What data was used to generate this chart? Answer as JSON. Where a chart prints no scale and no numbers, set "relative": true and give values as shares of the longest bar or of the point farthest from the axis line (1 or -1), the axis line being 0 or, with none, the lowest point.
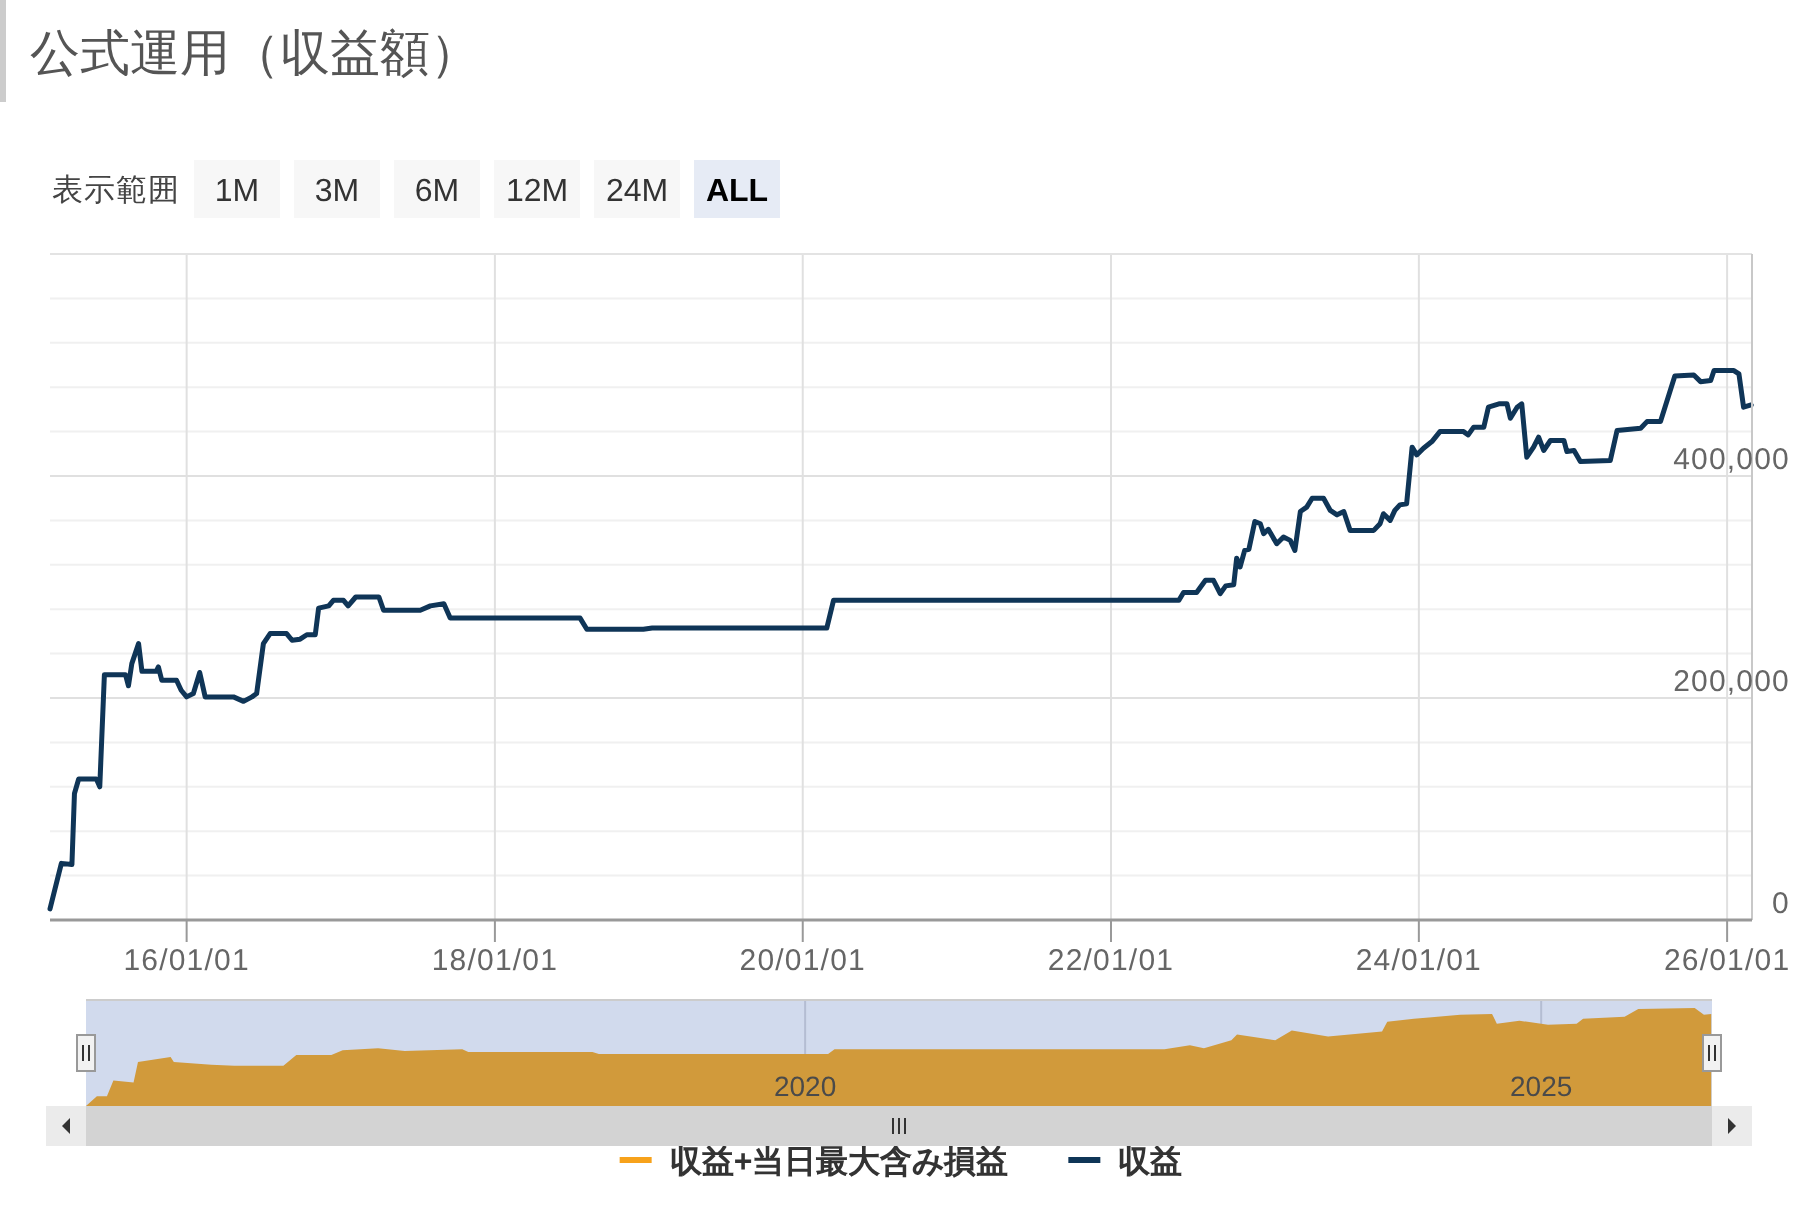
{
  "chart_data": [
    {
      "type": "line",
      "title": "公式運用（収益額）",
      "annotations": [
        "表示範囲",
        "1M",
        "3M",
        "6M",
        "12M",
        "24M",
        "ALL"
      ],
      "x": [
        "2015-02-11",
        "2015-03-10",
        "2015-04-04",
        "2015-04-10",
        "2015-04-20",
        "2015-06-01",
        "2015-06-09",
        "2015-06-20",
        "2015-08-09",
        "2015-08-16",
        "2015-08-24",
        "2015-09-09",
        "2015-09-17",
        "2015-10-21",
        "2015-10-26",
        "2015-11-03",
        "2015-12-08",
        "2015-12-19",
        "2016-01-01",
        "2016-01-17",
        "2016-02-01",
        "2016-02-14",
        "2016-04-21",
        "2016-05-15",
        "2016-06-04",
        "2016-06-15",
        "2016-07-01",
        "2016-07-17",
        "2016-08-25",
        "2016-09-07",
        "2016-09-26",
        "2016-10-12",
        "2016-11-01",
        "2016-11-09",
        "2016-12-03",
        "2016-12-14",
        "2017-01-07",
        "2017-01-18",
        "2017-02-05",
        "2017-04-01",
        "2017-04-12",
        "2017-07-08",
        "2017-08-01",
        "2017-09-02",
        "2017-09-17",
        "2018-07-22",
        "2018-08-07",
        "2018-12-19",
        "2019-01-09",
        "2020-02-27",
        "2020-03-14",
        "2022-06-11",
        "2022-06-22",
        "2022-07-23",
        "2022-08-13",
        "2022-09-01",
        "2022-09-17",
        "2022-09-30",
        "2022-10-19",
        "2022-10-26",
        "2022-11-03",
        "2022-11-14",
        "2022-11-24",
        "2022-12-08",
        "2022-12-21",
        "2022-12-29",
        "2023-01-09",
        "2023-01-29",
        "2023-02-14",
        "2023-03-02",
        "2023-03-13",
        "2023-03-26",
        "2023-04-10",
        "2023-04-23",
        "2023-05-20",
        "2023-06-05",
        "2023-06-21",
        "2023-07-07",
        "2023-07-22",
        "2023-09-16",
        "2023-10-01",
        "2023-10-09",
        "2023-10-25",
        "2023-11-05",
        "2023-11-17",
        "2023-12-03",
        "2023-12-16",
        "2023-12-27",
        "2024-01-12",
        "2024-02-01",
        "2024-02-20",
        "2024-04-16",
        "2024-04-27",
        "2024-05-10",
        "2024-06-03",
        "2024-06-14",
        "2024-07-09",
        "2024-07-28",
        "2024-08-05",
        "2024-08-21",
        "2024-09-01",
        "2024-09-13",
        "2024-09-29",
        "2024-10-11",
        "2024-10-23",
        "2024-11-08",
        "2024-12-10",
        "2024-12-17",
        "2025-01-03",
        "2025-01-18",
        "2025-03-30",
        "2025-04-15",
        "2025-06-10",
        "2025-06-25",
        "2025-07-27",
        "2025-08-30",
        "2025-10-14",
        "2025-10-30",
        "2025-11-23",
        "2025-12-01",
        "2026-01-17",
        "2026-01-29",
        "2026-02-09",
        "2026-02-27"
      ],
      "series": [
        {
          "name": "収益+当日最大含み損益",
          "color": "#f7a21b",
          "values": [
            null,
            null,
            null,
            null,
            null,
            null,
            null,
            null,
            null,
            null,
            null,
            null,
            null,
            null,
            null,
            null,
            null,
            null,
            null,
            null,
            null,
            null,
            null,
            null,
            null,
            null,
            null,
            null,
            null,
            null,
            null,
            null,
            null,
            null,
            null,
            null,
            null,
            null,
            null,
            null,
            null,
            null,
            null,
            null,
            null,
            null,
            null,
            null,
            null,
            null,
            null,
            null,
            null,
            null,
            null,
            null,
            null,
            null,
            null,
            null,
            null,
            null,
            null,
            null,
            null,
            null,
            null,
            null,
            null,
            null,
            null,
            null,
            null,
            null,
            null,
            null,
            null,
            null,
            null,
            null,
            null,
            null,
            null,
            null,
            null,
            null,
            null,
            null,
            null,
            null,
            null,
            null,
            null,
            null,
            null,
            null,
            null,
            null,
            null,
            null,
            null,
            null,
            null,
            null,
            null,
            null,
            null,
            null,
            null,
            null,
            null,
            null,
            null,
            null,
            null,
            null,
            null,
            null,
            null,
            null,
            null,
            null,
            null,
            null
          ]
        },
        {
          "name": "収益",
          "color": "#0f3557",
          "values": [
            10000,
            51000,
            50000,
            114000,
            127000,
            127000,
            120000,
            221000,
            221000,
            211000,
            231000,
            249000,
            224000,
            224000,
            228000,
            216000,
            216000,
            207000,
            201000,
            204000,
            223000,
            201000,
            201000,
            197000,
            201000,
            204000,
            249000,
            258000,
            258000,
            252000,
            253000,
            257000,
            257000,
            281000,
            283000,
            288000,
            288000,
            283000,
            291000,
            291000,
            279000,
            279000,
            283000,
            285000,
            272000,
            272000,
            262000,
            262000,
            263000,
            263000,
            288000,
            288000,
            295000,
            295000,
            306000,
            306000,
            294000,
            301000,
            302000,
            326000,
            318000,
            333000,
            334000,
            359000,
            357000,
            348000,
            352000,
            339000,
            345000,
            342000,
            333000,
            368000,
            372000,
            380000,
            380000,
            369000,
            365000,
            368000,
            351000,
            351000,
            357000,
            366000,
            360000,
            369000,
            374000,
            375000,
            426000,
            419000,
            425000,
            431000,
            440000,
            440000,
            437000,
            444000,
            444000,
            462000,
            465000,
            465000,
            452000,
            462000,
            465000,
            417000,
            426000,
            435000,
            423000,
            432000,
            432000,
            422000,
            423000,
            413000,
            414000,
            441000,
            443000,
            449000,
            449000,
            490000,
            491000,
            485000,
            486000,
            495000,
            495000,
            492000,
            462000,
            464000
          ]
        }
      ],
      "xlim": [
        "2015-02-11",
        "2026-03-01"
      ],
      "xticks": [
        {
          "value": "2016-01-01",
          "label": "16/01/01"
        },
        {
          "value": "2018-01-01",
          "label": "18/01/01"
        },
        {
          "value": "2020-01-01",
          "label": "20/01/01"
        },
        {
          "value": "2022-01-01",
          "label": "22/01/01"
        },
        {
          "value": "2024-01-01",
          "label": "24/01/01"
        },
        {
          "value": "2026-01-01",
          "label": "26/01/01"
        }
      ],
      "ylim": [
        0,
        600000
      ],
      "yticks": [
        0,
        {
          "value": 40000,
          "label": null
        },
        {
          "value": 80000,
          "label": null
        },
        {
          "value": 120000,
          "label": null
        },
        {
          "value": 160000,
          "label": null
        },
        {
          "value": 200000,
          "label": "200,000"
        },
        {
          "value": 240000,
          "label": null
        },
        {
          "value": 280000,
          "label": null
        },
        {
          "value": 320000,
          "label": null
        },
        {
          "value": 360000,
          "label": null
        },
        {
          "value": 400000,
          "label": "400,000"
        },
        {
          "value": 440000,
          "label": null
        },
        {
          "value": 480000,
          "label": null
        },
        {
          "value": 520000,
          "label": null
        },
        {
          "value": 560000,
          "label": null
        },
        {
          "value": 600000,
          "label": null
        }
      ],
      "grid": true,
      "legend": "bottom"
    },
    {
      "type": "area",
      "relative": true,
      "color": "#d19a3b",
      "x": [
        "2015-02-11",
        "2015-03-10",
        "2015-04-04",
        "2015-04-20",
        "2015-06-09",
        "2015-06-20",
        "2015-09-09",
        "2015-09-17",
        "2015-12-19",
        "2016-02-14",
        "2016-06-15",
        "2016-07-17",
        "2016-10-12",
        "2016-11-09",
        "2017-02-05",
        "2017-04-12",
        "2017-09-02",
        "2017-09-17",
        "2018-07-22",
        "2018-08-07",
        "2020-02-27",
        "2020-03-14",
        "2022-06-11",
        "2022-08-13",
        "2022-09-17",
        "2022-11-24",
        "2022-12-08",
        "2023-03-13",
        "2023-04-23",
        "2023-07-22",
        "2023-12-03",
        "2023-12-16",
        "2024-02-20",
        "2024-06-14",
        "2024-09-01",
        "2024-09-13",
        "2024-11-08",
        "2025-01-18",
        "2025-03-30",
        "2025-04-15",
        "2025-07-27",
        "2025-08-30",
        "2026-01-17",
        "2026-02-09",
        "2026-02-27"
      ],
      "values": [
        0,
        0.1,
        0.1,
        0.26,
        0.24,
        0.45,
        0.5,
        0.45,
        0.42,
        0.41,
        0.41,
        0.52,
        0.52,
        0.57,
        0.59,
        0.56,
        0.58,
        0.55,
        0.55,
        0.53,
        0.53,
        0.58,
        0.58,
        0.62,
        0.59,
        0.67,
        0.73,
        0.67,
        0.77,
        0.71,
        0.76,
        0.86,
        0.89,
        0.93,
        0.94,
        0.84,
        0.87,
        0.83,
        0.84,
        0.89,
        0.91,
        0.99,
        1,
        0.93,
        0.94
      ],
      "xlim": [
        "2015-02-11",
        "2026-03-01"
      ],
      "xticks": [
        {
          "value": "2020-01-01",
          "label": "2020"
        },
        {
          "value": "2025-01-01",
          "label": "2025"
        }
      ],
      "grid": "x",
      "bands": [
        {
          "axis": "x",
          "from": "2015-02-11",
          "to": "2026-03-01",
          "color": "#d1daed"
        }
      ]
    }
  ]
}
